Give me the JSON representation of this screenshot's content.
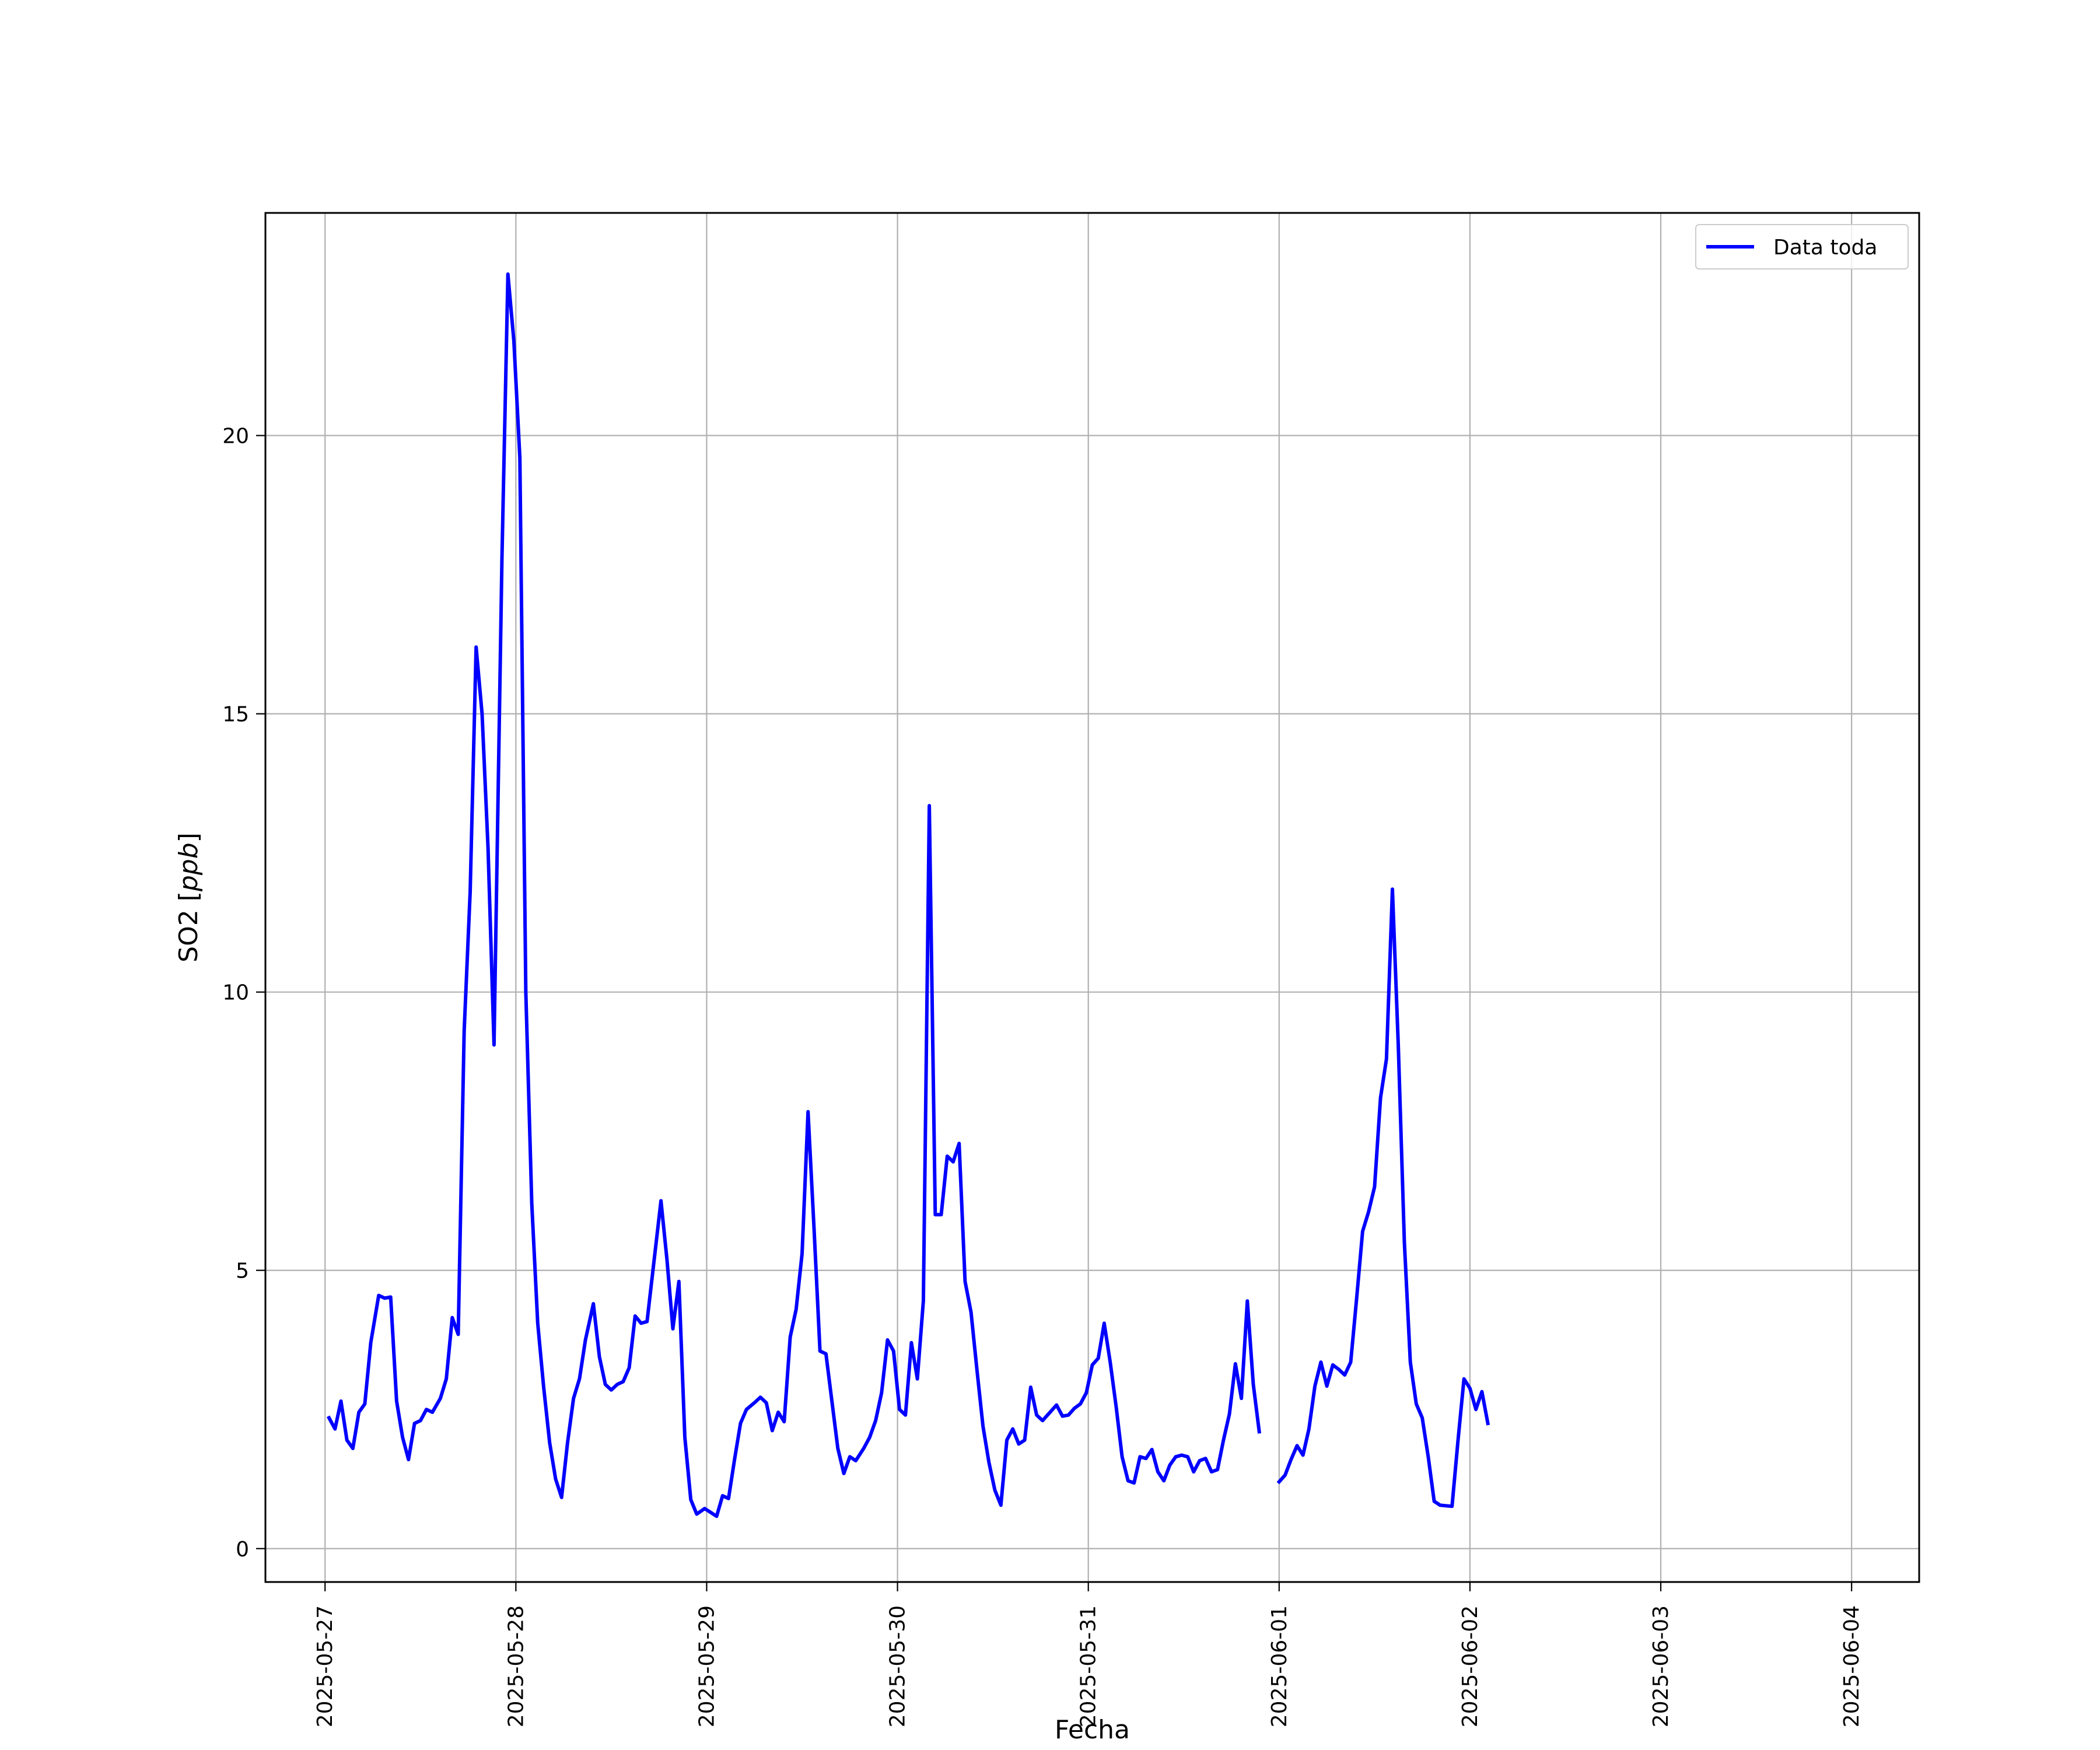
{
  "chart_data": {
    "type": "line",
    "xlabel": "Fecha",
    "ylabel_main": "SO2 [",
    "ylabel_unit": "ppb",
    "ylabel_end": "]",
    "xlim": [
      "2025-05-26T16:30",
      "2025-06-04T08:30"
    ],
    "ylim": [
      -0.6,
      24.0
    ],
    "grid": true,
    "legend_position": "top-right",
    "x_ticks": [
      "2025-05-27",
      "2025-05-28",
      "2025-05-29",
      "2025-05-30",
      "2025-05-31",
      "2025-06-01",
      "2025-06-02",
      "2025-06-03",
      "2025-06-04"
    ],
    "y_ticks": [
      0,
      5,
      10,
      15,
      20
    ],
    "series": [
      {
        "name": "Data toda",
        "color": "#0000ff",
        "points": [
          [
            "2025-05-27T00:30",
            2.35
          ],
          [
            "2025-05-27T01:15",
            2.15
          ],
          [
            "2025-05-27T02:00",
            2.65
          ],
          [
            "2025-05-27T02:45",
            1.95
          ],
          [
            "2025-05-27T03:30",
            1.8
          ],
          [
            "2025-05-27T04:15",
            2.45
          ],
          [
            "2025-05-27T05:00",
            2.6
          ],
          [
            "2025-05-27T05:45",
            3.7
          ],
          [
            "2025-05-27T06:45",
            4.55
          ],
          [
            "2025-05-27T07:30",
            4.5
          ],
          [
            "2025-05-27T08:15",
            4.52
          ],
          [
            "2025-05-27T09:00",
            2.65
          ],
          [
            "2025-05-27T09:45",
            2.0
          ],
          [
            "2025-05-27T10:30",
            1.6
          ],
          [
            "2025-05-27T11:15",
            2.25
          ],
          [
            "2025-05-27T12:00",
            2.3
          ],
          [
            "2025-05-27T12:45",
            2.5
          ],
          [
            "2025-05-27T13:30",
            2.45
          ],
          [
            "2025-05-27T14:30",
            2.7
          ],
          [
            "2025-05-27T15:15",
            3.05
          ],
          [
            "2025-05-27T16:00",
            4.15
          ],
          [
            "2025-05-27T16:45",
            3.85
          ],
          [
            "2025-05-27T17:30",
            9.3
          ],
          [
            "2025-05-27T18:15",
            11.8
          ],
          [
            "2025-05-27T19:00",
            16.2
          ],
          [
            "2025-05-27T19:45",
            15.0
          ],
          [
            "2025-05-27T20:30",
            12.6
          ],
          [
            "2025-05-27T21:15",
            9.05
          ],
          [
            "2025-05-27T22:15",
            17.8
          ],
          [
            "2025-05-27T23:00",
            22.9
          ],
          [
            "2025-05-27T23:45",
            21.7
          ],
          [
            "2025-05-28T00:30",
            19.6
          ],
          [
            "2025-05-28T01:15",
            10.0
          ],
          [
            "2025-05-28T02:00",
            6.2
          ],
          [
            "2025-05-28T02:45",
            4.05
          ],
          [
            "2025-05-28T03:30",
            2.9
          ],
          [
            "2025-05-28T04:15",
            1.9
          ],
          [
            "2025-05-28T05:00",
            1.25
          ],
          [
            "2025-05-28T05:45",
            0.92
          ],
          [
            "2025-05-28T06:30",
            1.9
          ],
          [
            "2025-05-28T07:15",
            2.7
          ],
          [
            "2025-05-28T08:00",
            3.05
          ],
          [
            "2025-05-28T08:45",
            3.75
          ],
          [
            "2025-05-28T09:45",
            4.4
          ],
          [
            "2025-05-28T10:30",
            3.45
          ],
          [
            "2025-05-28T11:15",
            2.95
          ],
          [
            "2025-05-28T12:00",
            2.85
          ],
          [
            "2025-05-28T12:45",
            2.95
          ],
          [
            "2025-05-28T13:30",
            3.0
          ],
          [
            "2025-05-28T14:15",
            3.25
          ],
          [
            "2025-05-28T15:00",
            4.18
          ],
          [
            "2025-05-28T15:45",
            4.05
          ],
          [
            "2025-05-28T16:30",
            4.08
          ],
          [
            "2025-05-28T18:15",
            6.25
          ],
          [
            "2025-05-28T19:00",
            5.2
          ],
          [
            "2025-05-28T19:45",
            3.95
          ],
          [
            "2025-05-28T20:30",
            4.8
          ],
          [
            "2025-05-28T21:15",
            2.0
          ],
          [
            "2025-05-28T22:00",
            0.88
          ],
          [
            "2025-05-28T22:45",
            0.62
          ],
          [
            "2025-05-28T23:45",
            0.72
          ],
          [
            "2025-05-29T00:30",
            0.65
          ],
          [
            "2025-05-29T01:15",
            0.58
          ],
          [
            "2025-05-29T02:00",
            0.95
          ],
          [
            "2025-05-29T02:45",
            0.9
          ],
          [
            "2025-05-29T03:30",
            1.6
          ],
          [
            "2025-05-29T04:15",
            2.25
          ],
          [
            "2025-05-29T05:00",
            2.5
          ],
          [
            "2025-05-29T06:00",
            2.62
          ],
          [
            "2025-05-29T06:45",
            2.72
          ],
          [
            "2025-05-29T07:30",
            2.62
          ],
          [
            "2025-05-29T08:15",
            2.12
          ],
          [
            "2025-05-29T09:00",
            2.45
          ],
          [
            "2025-05-29T09:45",
            2.28
          ],
          [
            "2025-05-29T10:30",
            3.8
          ],
          [
            "2025-05-29T11:15",
            4.3
          ],
          [
            "2025-05-29T12:00",
            5.3
          ],
          [
            "2025-05-29T12:45",
            7.85
          ],
          [
            "2025-05-29T13:30",
            5.75
          ],
          [
            "2025-05-29T14:15",
            3.55
          ],
          [
            "2025-05-29T15:00",
            3.5
          ],
          [
            "2025-05-29T15:45",
            2.65
          ],
          [
            "2025-05-29T16:30",
            1.8
          ],
          [
            "2025-05-29T17:15",
            1.35
          ],
          [
            "2025-05-29T18:00",
            1.65
          ],
          [
            "2025-05-29T18:45",
            1.58
          ],
          [
            "2025-05-29T19:45",
            1.8
          ],
          [
            "2025-05-29T20:30",
            2.0
          ],
          [
            "2025-05-29T21:15",
            2.3
          ],
          [
            "2025-05-29T22:00",
            2.8
          ],
          [
            "2025-05-29T22:45",
            3.75
          ],
          [
            "2025-05-29T23:30",
            3.55
          ],
          [
            "2025-05-30T00:15",
            2.5
          ],
          [
            "2025-05-30T01:00",
            2.4
          ],
          [
            "2025-05-30T01:45",
            3.7
          ],
          [
            "2025-05-30T02:30",
            3.05
          ],
          [
            "2025-05-30T03:15",
            4.45
          ],
          [
            "2025-05-30T04:00",
            13.35
          ],
          [
            "2025-05-30T04:45",
            6.0
          ],
          [
            "2025-05-30T05:30",
            6.0
          ],
          [
            "2025-05-30T06:15",
            7.05
          ],
          [
            "2025-05-30T07:00",
            6.95
          ],
          [
            "2025-05-30T07:45",
            7.28
          ],
          [
            "2025-05-30T08:30",
            4.8
          ],
          [
            "2025-05-30T09:15",
            4.25
          ],
          [
            "2025-05-30T10:00",
            3.2
          ],
          [
            "2025-05-30T10:45",
            2.2
          ],
          [
            "2025-05-30T11:30",
            1.55
          ],
          [
            "2025-05-30T12:15",
            1.05
          ],
          [
            "2025-05-30T13:00",
            0.78
          ],
          [
            "2025-05-30T13:45",
            1.95
          ],
          [
            "2025-05-30T14:30",
            2.15
          ],
          [
            "2025-05-30T15:15",
            1.88
          ],
          [
            "2025-05-30T16:00",
            1.95
          ],
          [
            "2025-05-30T16:45",
            2.9
          ],
          [
            "2025-05-30T17:30",
            2.4
          ],
          [
            "2025-05-30T18:15",
            2.3
          ],
          [
            "2025-05-30T19:00",
            2.42
          ],
          [
            "2025-05-30T20:00",
            2.58
          ],
          [
            "2025-05-30T20:45",
            2.38
          ],
          [
            "2025-05-30T21:30",
            2.4
          ],
          [
            "2025-05-30T22:15",
            2.52
          ],
          [
            "2025-05-30T23:00",
            2.6
          ],
          [
            "2025-05-30T23:45",
            2.8
          ],
          [
            "2025-05-31T00:30",
            3.3
          ],
          [
            "2025-05-31T01:15",
            3.42
          ],
          [
            "2025-05-31T02:00",
            4.05
          ],
          [
            "2025-05-31T02:45",
            3.35
          ],
          [
            "2025-05-31T03:30",
            2.55
          ],
          [
            "2025-05-31T04:15",
            1.65
          ],
          [
            "2025-05-31T05:00",
            1.22
          ],
          [
            "2025-05-31T05:45",
            1.18
          ],
          [
            "2025-05-31T06:30",
            1.65
          ],
          [
            "2025-05-31T07:15",
            1.62
          ],
          [
            "2025-05-31T08:00",
            1.78
          ],
          [
            "2025-05-31T08:45",
            1.38
          ],
          [
            "2025-05-31T09:30",
            1.22
          ],
          [
            "2025-05-31T10:15",
            1.5
          ],
          [
            "2025-05-31T11:00",
            1.65
          ],
          [
            "2025-05-31T11:45",
            1.68
          ],
          [
            "2025-05-31T12:30",
            1.65
          ],
          [
            "2025-05-31T13:15",
            1.38
          ],
          [
            "2025-05-31T14:00",
            1.58
          ],
          [
            "2025-05-31T14:45",
            1.62
          ],
          [
            "2025-05-31T15:30",
            1.38
          ],
          [
            "2025-05-31T16:15",
            1.42
          ],
          [
            "2025-05-31T17:00",
            1.95
          ],
          [
            "2025-05-31T17:45",
            2.42
          ],
          [
            "2025-05-31T18:30",
            3.32
          ],
          [
            "2025-05-31T19:15",
            2.7
          ],
          [
            "2025-05-31T20:00",
            4.45
          ],
          [
            "2025-05-31T20:45",
            2.95
          ],
          [
            "2025-05-31T21:30",
            2.1
          ],
          null,
          [
            "2025-06-01T00:00",
            1.2
          ],
          [
            "2025-06-01T00:45",
            1.32
          ],
          [
            "2025-06-01T01:30",
            1.6
          ],
          [
            "2025-06-01T02:15",
            1.85
          ],
          [
            "2025-06-01T03:00",
            1.68
          ],
          [
            "2025-06-01T03:45",
            2.15
          ],
          [
            "2025-06-01T04:30",
            2.92
          ],
          [
            "2025-06-01T05:15",
            3.35
          ],
          [
            "2025-06-01T06:00",
            2.92
          ],
          [
            "2025-06-01T06:45",
            3.3
          ],
          [
            "2025-06-01T07:30",
            3.22
          ],
          [
            "2025-06-01T08:15",
            3.12
          ],
          [
            "2025-06-01T09:00",
            3.35
          ],
          [
            "2025-06-01T09:45",
            4.5
          ],
          [
            "2025-06-01T10:30",
            5.7
          ],
          [
            "2025-06-01T11:15",
            6.05
          ],
          [
            "2025-06-01T12:00",
            6.5
          ],
          [
            "2025-06-01T12:45",
            8.1
          ],
          [
            "2025-06-01T13:30",
            8.8
          ],
          [
            "2025-06-01T14:15",
            11.85
          ],
          [
            "2025-06-01T15:00",
            9.0
          ],
          [
            "2025-06-01T15:45",
            5.5
          ],
          [
            "2025-06-01T16:30",
            3.35
          ],
          [
            "2025-06-01T17:15",
            2.6
          ],
          [
            "2025-06-01T18:00",
            2.35
          ],
          [
            "2025-06-01T18:45",
            1.65
          ],
          [
            "2025-06-01T19:30",
            0.85
          ],
          [
            "2025-06-01T20:15",
            0.78
          ],
          [
            "2025-06-01T21:00",
            0.77
          ],
          [
            "2025-06-01T21:45",
            0.76
          ],
          [
            "2025-06-01T22:30",
            1.95
          ],
          [
            "2025-06-01T23:15",
            3.05
          ],
          [
            "2025-06-02T00:00",
            2.88
          ],
          [
            "2025-06-02T00:45",
            2.5
          ],
          [
            "2025-06-02T01:30",
            2.82
          ],
          [
            "2025-06-02T02:15",
            2.25
          ]
        ]
      }
    ]
  }
}
